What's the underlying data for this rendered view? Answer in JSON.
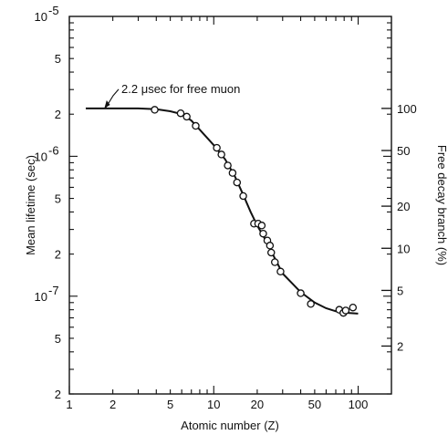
{
  "chart_data": {
    "type": "scatter",
    "xlabel": "Atomic number (Z)",
    "ylabel": "Mean lifetime (sec)",
    "y2label": "Free decay branch (%)",
    "x_scale": "log",
    "y_scale": "log",
    "xlim": [
      1,
      170
    ],
    "ylim": [
      2e-08,
      1e-05
    ],
    "x_ticks": [
      {
        "value": 1,
        "label": "1"
      },
      {
        "value": 2,
        "label": "2"
      },
      {
        "value": 5,
        "label": "5"
      },
      {
        "value": 10,
        "label": "10"
      },
      {
        "value": 20,
        "label": "20"
      },
      {
        "value": 50,
        "label": "50"
      },
      {
        "value": 100,
        "label": "100"
      }
    ],
    "y_ticks": [
      {
        "value": 1e-05,
        "mantissa": "10",
        "exp": "-5"
      },
      {
        "value": 5e-06,
        "mantissa": "5",
        "exp": ""
      },
      {
        "value": 2e-06,
        "mantissa": "2",
        "exp": ""
      },
      {
        "value": 1e-06,
        "mantissa": "10",
        "exp": "-6"
      },
      {
        "value": 5e-07,
        "mantissa": "5",
        "exp": ""
      },
      {
        "value": 2e-07,
        "mantissa": "2",
        "exp": ""
      },
      {
        "value": 1e-07,
        "mantissa": "10",
        "exp": "-7"
      },
      {
        "value": 5e-08,
        "mantissa": "5",
        "exp": ""
      },
      {
        "value": 2e-08,
        "mantissa": "2",
        "exp": ""
      }
    ],
    "y2_ticks": [
      {
        "value": 2.2e-06,
        "label": "100"
      },
      {
        "value": 1.1e-06,
        "label": "50"
      },
      {
        "value": 4.4e-07,
        "label": "20"
      },
      {
        "value": 2.2e-07,
        "label": "10"
      },
      {
        "value": 1.1e-07,
        "label": "5"
      },
      {
        "value": 4.4e-08,
        "label": "2"
      }
    ],
    "annotations": [
      {
        "text": "2.2 μsec for free muon",
        "x": 1.3,
        "y": 2.2e-06
      }
    ],
    "series": [
      {
        "points": [
          {
            "x": 3.9,
            "y": 2.15e-06
          },
          {
            "x": 5.9,
            "y": 2.03e-06
          },
          {
            "x": 6.5,
            "y": 1.92e-06
          },
          {
            "x": 7.5,
            "y": 1.65e-06
          },
          {
            "x": 10.5,
            "y": 1.15e-06
          },
          {
            "x": 11.3,
            "y": 1.03e-06
          },
          {
            "x": 12.5,
            "y": 8.6e-07
          },
          {
            "x": 13.5,
            "y": 7.6e-07
          },
          {
            "x": 14.5,
            "y": 6.5e-07
          },
          {
            "x": 16,
            "y": 5.2e-07
          },
          {
            "x": 19,
            "y": 3.3e-07
          },
          {
            "x": 20.3,
            "y": 3.3e-07
          },
          {
            "x": 21.5,
            "y": 3.2e-07
          },
          {
            "x": 22,
            "y": 2.8e-07
          },
          {
            "x": 23.5,
            "y": 2.5e-07
          },
          {
            "x": 24.5,
            "y": 2.3e-07
          },
          {
            "x": 25,
            "y": 2.05e-07
          },
          {
            "x": 26.5,
            "y": 1.75e-07
          },
          {
            "x": 29,
            "y": 1.5e-07
          },
          {
            "x": 40,
            "y": 1.05e-07
          },
          {
            "x": 47,
            "y": 8.8e-08
          },
          {
            "x": 74,
            "y": 8e-08
          },
          {
            "x": 79,
            "y": 7.6e-08
          },
          {
            "x": 82,
            "y": 7.9e-08
          },
          {
            "x": 92,
            "y": 8.3e-08
          }
        ]
      }
    ],
    "fit_curve": [
      {
        "x": 1.3,
        "y": 2.2e-06
      },
      {
        "x": 3,
        "y": 2.2e-06
      },
      {
        "x": 4,
        "y": 2.17e-06
      },
      {
        "x": 5,
        "y": 2.1e-06
      },
      {
        "x": 6,
        "y": 2e-06
      },
      {
        "x": 7,
        "y": 1.8e-06
      },
      {
        "x": 8,
        "y": 1.55e-06
      },
      {
        "x": 10,
        "y": 1.2e-06
      },
      {
        "x": 12,
        "y": 9.5e-07
      },
      {
        "x": 14,
        "y": 7.2e-07
      },
      {
        "x": 16,
        "y": 5.3e-07
      },
      {
        "x": 18,
        "y": 4e-07
      },
      {
        "x": 20,
        "y": 3.2e-07
      },
      {
        "x": 22,
        "y": 2.7e-07
      },
      {
        "x": 25,
        "y": 2.1e-07
      },
      {
        "x": 30,
        "y": 1.45e-07
      },
      {
        "x": 40,
        "y": 1.07e-07
      },
      {
        "x": 50,
        "y": 9e-08
      },
      {
        "x": 60,
        "y": 8.2e-08
      },
      {
        "x": 70,
        "y": 7.8e-08
      },
      {
        "x": 85,
        "y": 7.6e-08
      },
      {
        "x": 100,
        "y": 7.5e-08
      }
    ]
  }
}
